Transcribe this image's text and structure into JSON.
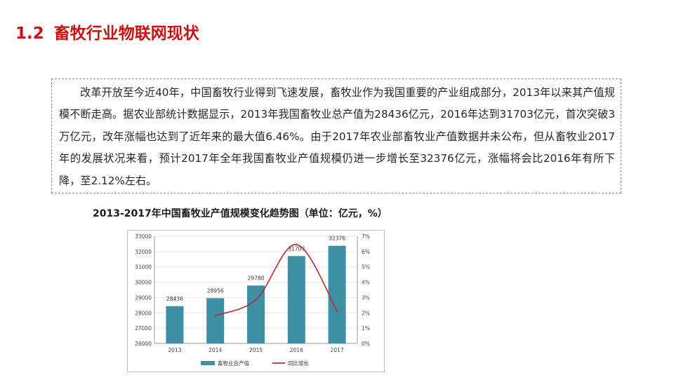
{
  "header": {
    "number": "1.2",
    "title": "畜牧行业物联网现状"
  },
  "body_text": "改革开放至今近40年，中国畜牧行业得到飞速发展，畜牧业作为我国重要的产业组成部分，2013年以来其产值规模不断走高。据农业部统计数据显示，2013年我国畜牧业总产值为28436亿元，2016年达到31703亿元，首次突破3万亿元，改年涨幅也达到了近年来的最大值6.46%。由于2017年农业部畜牧业产值数据并未公布，但从畜牧业2017年的发展状况来看，预计2017年全年我国畜牧业产值规模仍进一步增长至32376亿元，涨幅将会比2016年有所下降，至2.12%左右。",
  "chart_title": "2013-2017年中国畜牧业产值规模变化趋势图（单位：亿元，%）",
  "colors": {
    "title_red": "#cc1111",
    "bar": "#3d8fa5",
    "line": "#c0282d"
  },
  "chart_data": {
    "type": "bar",
    "categories": [
      "2013",
      "2014",
      "2015",
      "2016",
      "2017"
    ],
    "series": [
      {
        "name": "畜牧业总产值",
        "type": "bar",
        "axis": "left",
        "values": [
          28436,
          28956,
          29780,
          31703,
          32376
        ],
        "labels": [
          "28436",
          "28956",
          "29780",
          "31703",
          "32376"
        ]
      },
      {
        "name": "同比增长",
        "type": "line",
        "axis": "right",
        "values": [
          null,
          1.83,
          2.85,
          6.46,
          2.12
        ]
      }
    ],
    "ylim_left": [
      26000,
      33000
    ],
    "yticks_left": [
      "26000",
      "27000",
      "28000",
      "29000",
      "30000",
      "31000",
      "32000",
      "33000"
    ],
    "ylim_right": [
      0,
      7
    ],
    "yticks_right": [
      "0%",
      "1%",
      "2%",
      "3%",
      "4%",
      "5%",
      "6%",
      "7%"
    ],
    "legend_position": "bottom",
    "grid": true
  }
}
